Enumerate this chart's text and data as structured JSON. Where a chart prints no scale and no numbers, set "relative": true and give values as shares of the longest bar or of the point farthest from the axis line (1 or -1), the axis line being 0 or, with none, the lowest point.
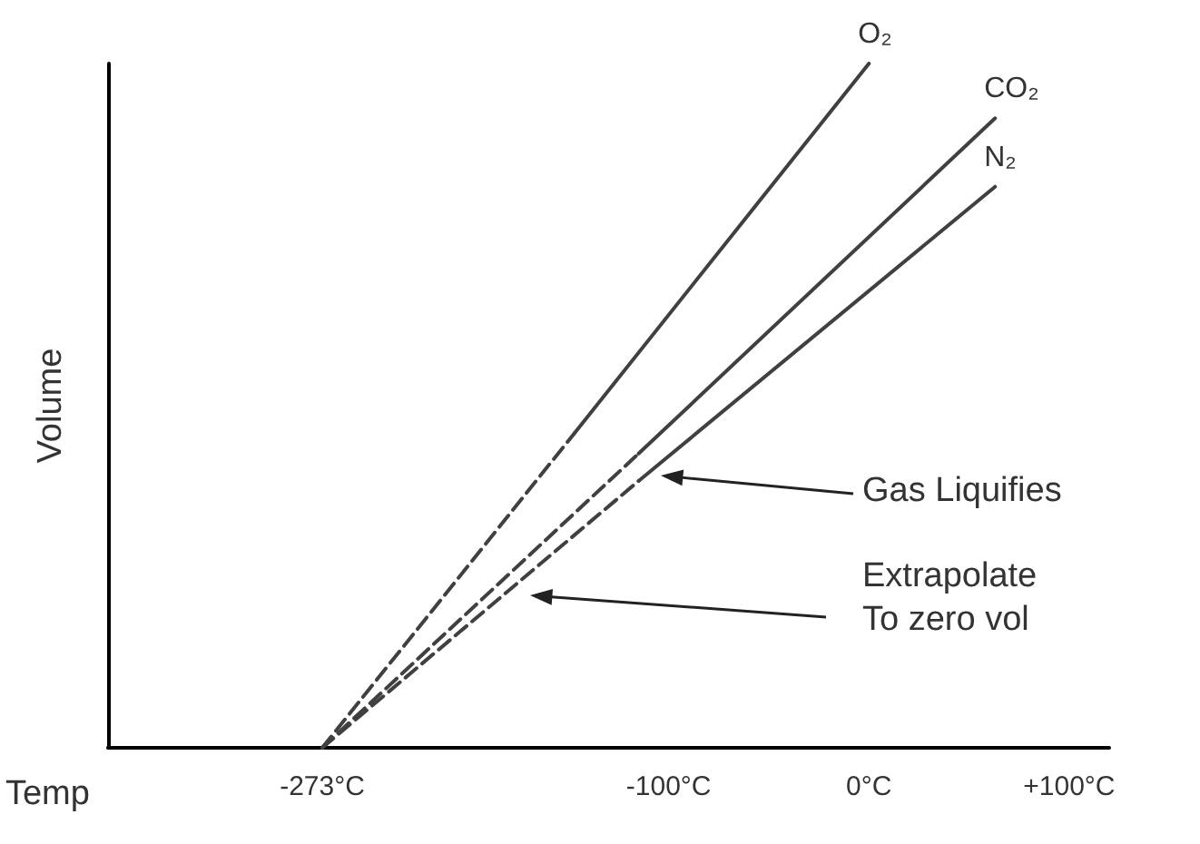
{
  "chart_data": {
    "type": "line",
    "relative": true,
    "xlabel": "Temp",
    "ylabel": "Volume",
    "tick_labels": "x",
    "marker": "none",
    "xlim": [
      -380,
      120
    ],
    "xticks": [
      {
        "value": -273,
        "label": "-273°C"
      },
      {
        "value": -100,
        "label": "-100°C"
      },
      {
        "value": 0,
        "label": "0°C"
      },
      {
        "value": 100,
        "label": "+100°C"
      }
    ],
    "series": [
      {
        "name": "O₂",
        "color": "#404040",
        "line_style": "solid",
        "x": [
          -147,
          0
        ],
        "values": [
          0.46,
          1
        ]
      },
      {
        "name": "CO₂",
        "color": "#404040",
        "line_style": "solid",
        "x": [
          -115,
          63
        ],
        "values": [
          0.43,
          0.92
        ]
      },
      {
        "name": "N₂",
        "color": "#404040",
        "line_style": "solid",
        "x": [
          -115,
          63
        ],
        "values": [
          0.39,
          0.82
        ]
      },
      {
        "color": "#404040",
        "line_style": "dashed",
        "x": [
          -273,
          -147
        ],
        "values": [
          0,
          0.46
        ]
      },
      {
        "color": "#404040",
        "line_style": "dashed",
        "x": [
          -273,
          -115
        ],
        "values": [
          0,
          0.43
        ]
      },
      {
        "color": "#404040",
        "line_style": "dashed",
        "x": [
          -273,
          -115
        ],
        "values": [
          0,
          0.39
        ]
      }
    ],
    "annotations": [
      "Gas Liquifies",
      "Extrapolate\nTo zero vol"
    ]
  }
}
